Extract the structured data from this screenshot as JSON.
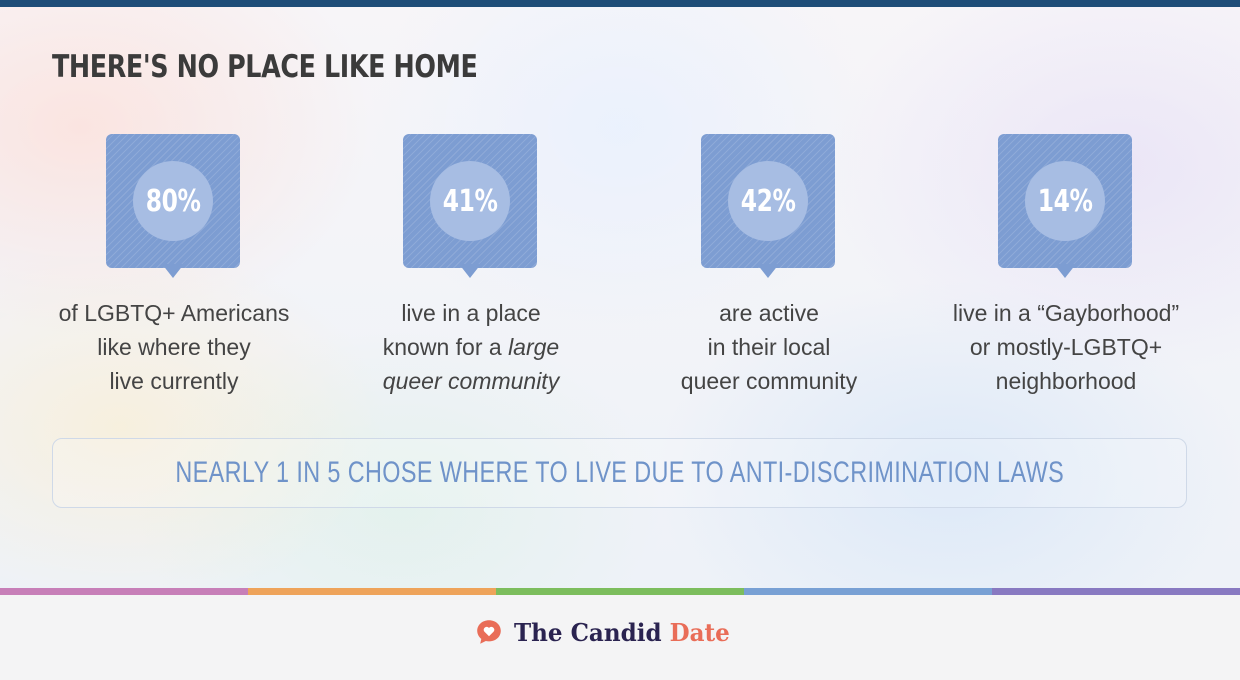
{
  "title": "THERE'S NO PLACE LIKE HOME",
  "stats": [
    {
      "value": "80%",
      "lines": [
        "of LGBTQ+ Americans",
        "like where they",
        "live currently"
      ]
    },
    {
      "value": "41%",
      "lines": [
        "live in a place",
        "known for a",
        "large",
        "queer community"
      ]
    },
    {
      "value": "42%",
      "lines": [
        "are active",
        "in their local",
        "queer community"
      ]
    },
    {
      "value": "14%",
      "lines": [
        "live in a “Gayborhood”",
        "or mostly-LGBTQ+",
        "neighborhood"
      ]
    }
  ],
  "callout": "NEARLY 1 IN 5 CHOSE WHERE TO LIVE DUE TO ANTI-DISCRIMINATION LAWS",
  "footer": {
    "brand_main": "The Candid",
    "brand_accent": "Date",
    "icon": "speech-bubble-heart-icon"
  },
  "colors": {
    "badge": "#7d9dd2",
    "badge_circle": "#a7bde3",
    "callout_text": "#6f93c9",
    "top_bar": "#1e4d78",
    "brand_text": "#2a2350",
    "brand_accent": "#e96d58",
    "stripes": [
      "#c77fb8",
      "#eea35a",
      "#7cbd5d",
      "#78a0d4",
      "#8879c1"
    ]
  }
}
